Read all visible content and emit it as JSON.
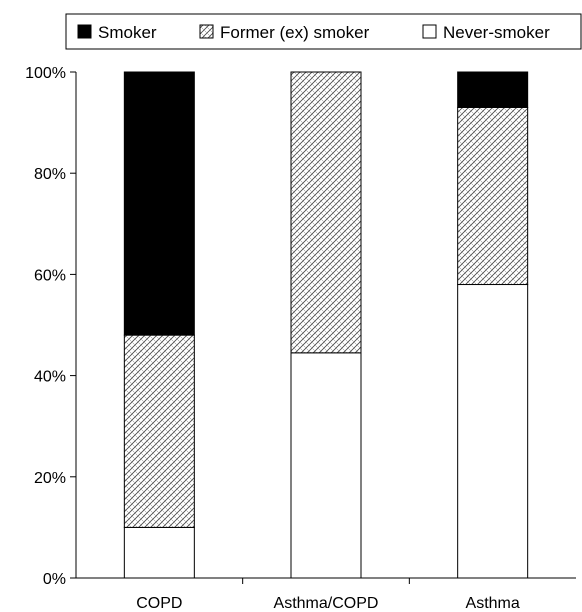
{
  "chart_data": {
    "type": "bar",
    "stacked": true,
    "percent_stacked": true,
    "categories": [
      "COPD",
      "Asthma/COPD",
      "Asthma"
    ],
    "series": [
      {
        "name": "Never-smoker",
        "values": [
          10,
          44.5,
          58
        ],
        "fill": "white"
      },
      {
        "name": "Former (ex) smoker",
        "values": [
          38,
          55.5,
          35
        ],
        "fill": "crosshatch"
      },
      {
        "name": "Smoker",
        "values": [
          52,
          0,
          7
        ],
        "fill": "black"
      }
    ],
    "legend_order": [
      "Smoker",
      "Former (ex) smoker",
      "Never-smoker"
    ],
    "legend_placement": "top",
    "y_ticks": [
      "0%",
      "20%",
      "40%",
      "60%",
      "80%",
      "100%"
    ],
    "ylim": [
      0,
      100
    ],
    "grid": false,
    "title": "",
    "xlabel": "",
    "ylabel": ""
  },
  "colors": {
    "smoker": "#000000",
    "former": "#ffffff",
    "never": "#ffffff",
    "axis": "#000000",
    "hatch": "#555555"
  }
}
